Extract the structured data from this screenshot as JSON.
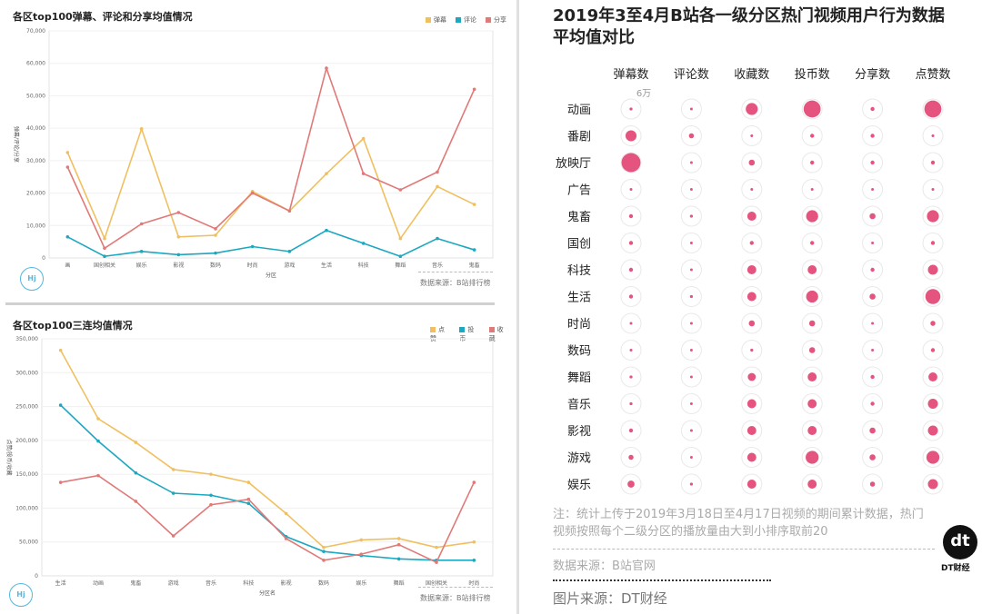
{
  "chart_data": [
    {
      "type": "line",
      "title": "各区top100弹幕、评论和分享均值情况",
      "xlabel": "分区",
      "ylabel": "弹幕/评论/分享",
      "ylim": [
        0,
        70000
      ],
      "yticks": [
        "0",
        "10,000",
        "20,000",
        "30,000",
        "40,000",
        "50,000",
        "60,000",
        "70,000"
      ],
      "categories": [
        "画",
        "国创相关",
        "娱乐",
        "影视",
        "数码",
        "时尚",
        "游戏",
        "生活",
        "科技",
        "舞蹈",
        "音乐",
        "鬼畜"
      ],
      "series": [
        {
          "name": "弹幕",
          "color": "#f0c060",
          "values": [
            32500,
            6000,
            39800,
            6500,
            7000,
            20500,
            14500,
            26000,
            36800,
            6000,
            22000,
            16500
          ]
        },
        {
          "name": "评论",
          "color": "#1ba8c0",
          "values": [
            6500,
            500,
            2000,
            1000,
            1500,
            3500,
            2000,
            8500,
            4500,
            500,
            6000,
            2500
          ]
        },
        {
          "name": "分享",
          "color": "#e07a78",
          "values": [
            28000,
            3000,
            10500,
            14000,
            9000,
            20000,
            14500,
            58500,
            26000,
            21000,
            26500,
            52000
          ]
        }
      ],
      "source": "数据来源：B站排行榜"
    },
    {
      "type": "line",
      "title": "各区top100三连均值情况",
      "xlabel": "分区名",
      "ylabel": "点赞/投币/收藏",
      "ylim": [
        0,
        350000
      ],
      "yticks": [
        "0",
        "50,000",
        "100,000",
        "150,000",
        "200,000",
        "250,000",
        "300,000",
        "350,000"
      ],
      "categories": [
        "生活",
        "动画",
        "鬼畜",
        "游戏",
        "音乐",
        "科技",
        "影视",
        "数码",
        "娱乐",
        "舞蹈",
        "国创相关",
        "时尚"
      ],
      "series": [
        {
          "name": "点赞",
          "color": "#f0c060",
          "values": [
            333000,
            232000,
            197000,
            157000,
            150000,
            138000,
            92000,
            42000,
            53000,
            55000,
            42000,
            50000
          ]
        },
        {
          "name": "投币",
          "color": "#1ba8c0",
          "values": [
            252000,
            199000,
            152000,
            122000,
            119000,
            107000,
            58000,
            36000,
            30000,
            25000,
            23000,
            23000
          ]
        },
        {
          "name": "收藏",
          "color": "#e07a78",
          "values": [
            138000,
            148000,
            110000,
            59000,
            105000,
            113000,
            55000,
            23000,
            32000,
            46000,
            20000,
            138000
          ]
        }
      ],
      "source": "数据来源：B站排行榜"
    },
    {
      "type": "scatter",
      "title": "2019年3至4月B站各一级分区热门视频用户行为数据平均值对比",
      "columns": [
        "弹幕数",
        "评论数",
        "收藏数",
        "投币数",
        "分享数",
        "点赞数"
      ],
      "rows": [
        "动画",
        "番剧",
        "放映厅",
        "广告",
        "鬼畜",
        "国创",
        "科技",
        "生活",
        "时尚",
        "数码",
        "舞蹈",
        "音乐",
        "影视",
        "游戏",
        "娱乐"
      ],
      "scale_label": "6万",
      "sizes": [
        [
          0.15,
          0.1,
          0.6,
          0.85,
          0.2,
          0.85
        ],
        [
          0.55,
          0.25,
          0.08,
          0.2,
          0.2,
          0.08
        ],
        [
          0.95,
          0.1,
          0.3,
          0.2,
          0.2,
          0.2
        ],
        [
          0.06,
          0.04,
          0.06,
          0.06,
          0.04,
          0.08
        ],
        [
          0.2,
          0.15,
          0.45,
          0.6,
          0.3,
          0.6
        ],
        [
          0.2,
          0.08,
          0.2,
          0.2,
          0.1,
          0.2
        ],
        [
          0.2,
          0.08,
          0.45,
          0.45,
          0.2,
          0.5
        ],
        [
          0.2,
          0.15,
          0.45,
          0.6,
          0.3,
          0.75
        ],
        [
          0.1,
          0.06,
          0.3,
          0.3,
          0.06,
          0.25
        ],
        [
          0.1,
          0.06,
          0.15,
          0.3,
          0.06,
          0.2
        ],
        [
          0.15,
          0.08,
          0.4,
          0.45,
          0.2,
          0.45
        ],
        [
          0.15,
          0.08,
          0.45,
          0.45,
          0.2,
          0.5
        ],
        [
          0.2,
          0.1,
          0.45,
          0.45,
          0.3,
          0.5
        ],
        [
          0.25,
          0.1,
          0.45,
          0.65,
          0.3,
          0.65
        ],
        [
          0.35,
          0.15,
          0.45,
          0.45,
          0.25,
          0.5
        ]
      ],
      "color": "#e4547e",
      "note": "注：统计上传于2019年3月18日至4月17日视频的期间累计数据，热门视频按照每个二级分区的播放量由大到小排序取前20",
      "source": "数据来源：B站官网",
      "image_source": "图片来源：DT财经",
      "logo_text": "dt",
      "logo_name": "DT财经"
    }
  ],
  "logo_hj": "Hj"
}
